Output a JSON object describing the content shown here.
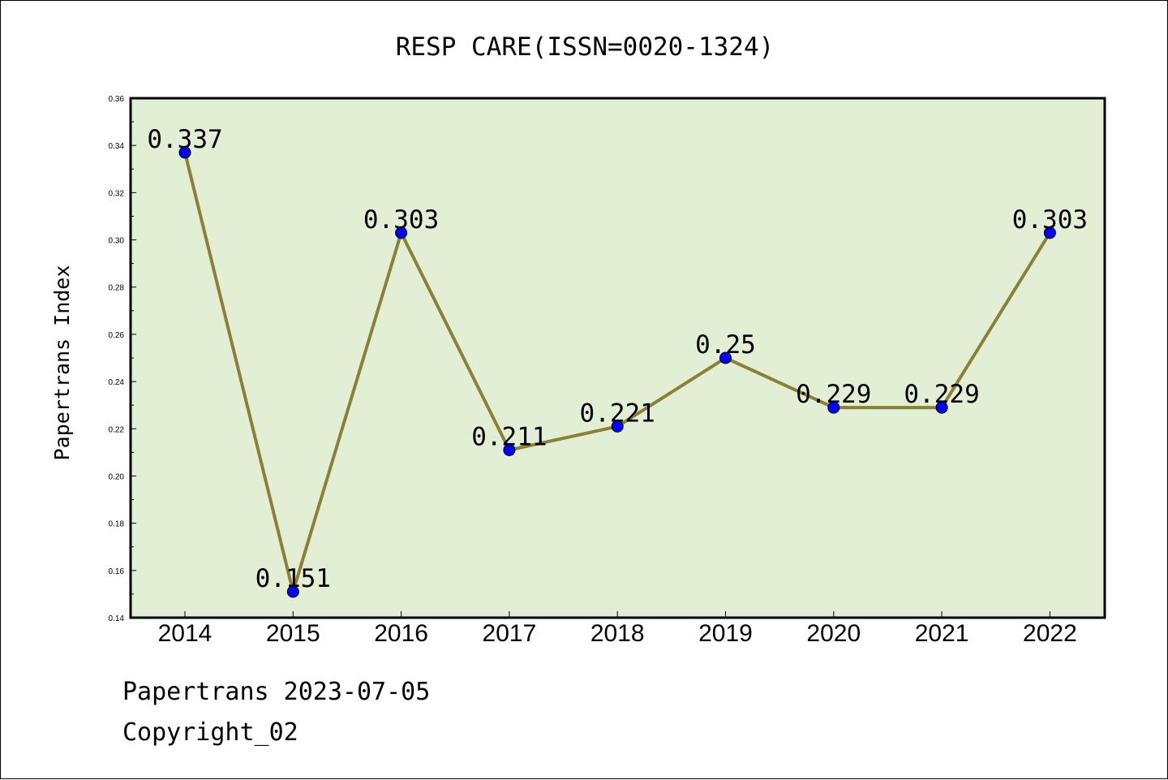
{
  "chart_data": {
    "type": "line",
    "title": "RESP CARE(ISSN=0020-1324)",
    "xlabel": "",
    "ylabel": "Papertrans Index",
    "categories": [
      "2014",
      "2015",
      "2016",
      "2017",
      "2018",
      "2019",
      "2020",
      "2021",
      "2022"
    ],
    "values": [
      0.337,
      0.151,
      0.303,
      0.211,
      0.221,
      0.25,
      0.229,
      0.229,
      0.303
    ],
    "data_labels": [
      "0.337",
      "0.151",
      "0.303",
      "0.211",
      "0.221",
      "0.25",
      "0.229",
      "0.229",
      "0.303"
    ],
    "ylim": [
      0.14,
      0.36
    ],
    "yticks": [
      "0.14",
      "0.16",
      "0.18",
      "0.20",
      "0.22",
      "0.24",
      "0.26",
      "0.28",
      "0.30",
      "0.32",
      "0.34",
      "0.36"
    ],
    "grid": false,
    "legend": "none",
    "colors": {
      "plot_background": "#e2efd5",
      "line": "#8b8035",
      "marker": "#0000ff"
    }
  },
  "footer": {
    "line1": "Papertrans 2023-07-05",
    "line2": "Copyright_02"
  }
}
